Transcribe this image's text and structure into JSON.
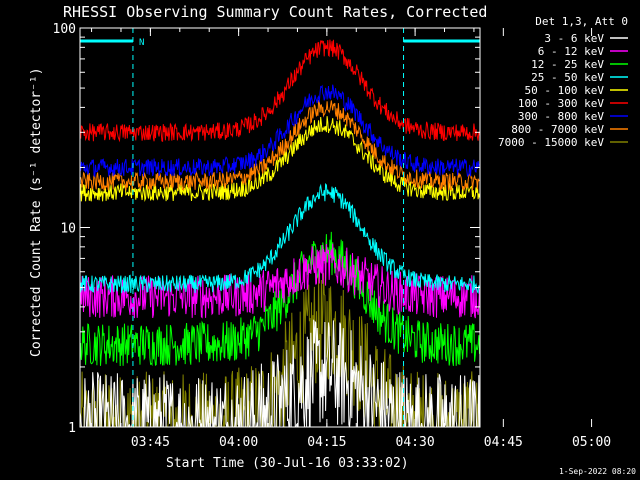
{
  "chart_data": {
    "type": "line",
    "title": "RHESSI Observing Summary Count Rates, Corrected",
    "xlabel": "Start Time (30-Jul-16 03:33:02)",
    "ylabel": "Corrected Count Rate (s⁻¹ detector⁻¹)",
    "yscale": "log",
    "ylim": [
      1,
      100
    ],
    "xlim_minutes": [
      0,
      68
    ],
    "x_ticks": [
      "03:45",
      "04:00",
      "04:15",
      "04:30",
      "04:45",
      "05:00"
    ],
    "y_ticks": [
      "1",
      "10",
      "100"
    ],
    "legend_title": "Det 1,3, Att 0",
    "legend_placement": "right",
    "flag_labels": [
      "N"
    ],
    "timestamp": "1-Sep-2022 08:20",
    "night_intervals_minutes": [
      [
        0,
        9
      ],
      [
        55,
        68
      ]
    ],
    "series": [
      {
        "name": "3 - 6 keV",
        "color": "#ffffff",
        "min": 1,
        "peaks": [
          1.9,
          2.2
        ]
      },
      {
        "name": "6 - 12 keV",
        "color": "#ff00ff",
        "min": 4.5,
        "peaks": [
          6.5,
          6.2
        ]
      },
      {
        "name": "12 - 25 keV",
        "color": "#00ff00",
        "min": 2.6,
        "peaks": [
          7.5,
          6.5
        ]
      },
      {
        "name": "25 - 50 keV",
        "color": "#00ffff",
        "min": 5.2,
        "peaks": [
          15,
          14
        ]
      },
      {
        "name": "50 - 100 keV",
        "color": "#ffff00",
        "min": 15,
        "peaks": [
          33,
          29
        ]
      },
      {
        "name": "100 - 300 keV",
        "color": "#ff0000",
        "min": 30,
        "peaks": [
          80,
          76
        ]
      },
      {
        "name": "300 - 800 keV",
        "color": "#0000ff",
        "min": 20,
        "peaks": [
          48,
          43
        ]
      },
      {
        "name": "800 - 7000 keV",
        "color": "#ff8000",
        "min": 17,
        "peaks": [
          40,
          36
        ]
      },
      {
        "name": "7000 - 15000 keV",
        "color": "#808000",
        "min": 1,
        "peaks": [
          3.2,
          3
        ]
      }
    ]
  }
}
